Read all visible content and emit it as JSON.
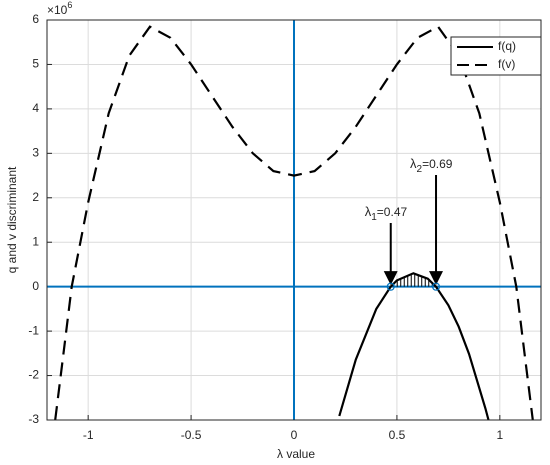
{
  "chart_data": {
    "type": "line",
    "x_label": "λ value",
    "y_label": "q and v discriminant",
    "y_multiplier": {
      "base": "×10",
      "exponent": "6"
    },
    "xlim": [
      -1.2,
      1.2
    ],
    "ylim": [
      -3,
      6
    ],
    "xticks": [
      -1,
      -0.5,
      0,
      0.5,
      1
    ],
    "yticks": [
      -3,
      -2,
      -1,
      0,
      1,
      2,
      3,
      4,
      5,
      6
    ],
    "grid": true,
    "legend": "northeast",
    "reference_lines": {
      "x": 0,
      "y": 0,
      "color": "#0072bd"
    },
    "series": [
      {
        "name": "f(q)",
        "color": "#000000",
        "style": "solid",
        "x": [
          0.22,
          0.3,
          0.4,
          0.47,
          0.5,
          0.58,
          0.65,
          0.69,
          0.75,
          0.8,
          0.85,
          0.93,
          0.945
        ],
        "values": [
          -2.91,
          -1.64,
          -0.5,
          0,
          0.14,
          0.3,
          0.18,
          0,
          -0.42,
          -0.9,
          -1.51,
          -2.74,
          -3.0
        ]
      },
      {
        "name": "f(v)",
        "color": "#000000",
        "style": "dashed",
        "x": [
          -1.16,
          -1.12,
          -1.08,
          -1.0,
          -0.9,
          -0.8,
          -0.7,
          -0.6,
          -0.5,
          -0.4,
          -0.3,
          -0.2,
          -0.1,
          0,
          0.1,
          0.2,
          0.3,
          0.4,
          0.5,
          0.6,
          0.7,
          0.8,
          0.9,
          1.0,
          1.08,
          1.12,
          1.16
        ],
        "values": [
          -3.0,
          -1.5,
          0,
          1.9,
          3.9,
          5.2,
          5.85,
          5.6,
          5.0,
          4.3,
          3.6,
          3.0,
          2.6,
          2.5,
          2.6,
          3.0,
          3.6,
          4.3,
          5.0,
          5.6,
          5.85,
          5.2,
          3.9,
          1.9,
          0,
          -1.5,
          -3.0
        ]
      }
    ],
    "annotations": [
      {
        "symbol": "λ",
        "subscript": "1",
        "text": "=0.47",
        "x": 0.47
      },
      {
        "symbol": "λ",
        "subscript": "2",
        "text": "=0.69",
        "x": 0.69
      }
    ]
  }
}
